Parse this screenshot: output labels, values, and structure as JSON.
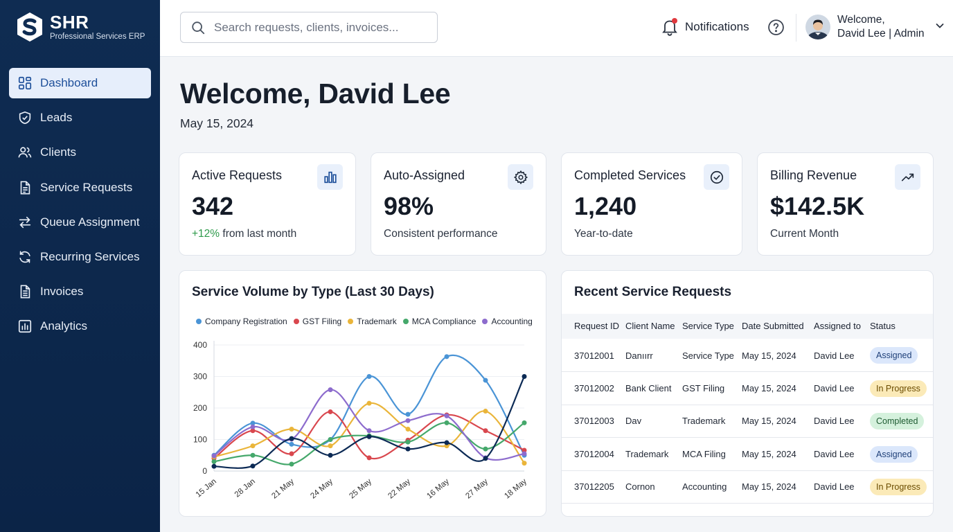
{
  "brand": {
    "name": "SHR",
    "subtitle": "Professional Services ERP"
  },
  "sidebar": {
    "items": [
      {
        "label": "Dashboard",
        "icon": "dashboard-icon",
        "active": true
      },
      {
        "label": "Leads",
        "icon": "shield-icon"
      },
      {
        "label": "Clients",
        "icon": "users-icon"
      },
      {
        "label": "Service Requests",
        "icon": "document-icon"
      },
      {
        "label": "Queue Assignment",
        "icon": "swap-arrows-icon"
      },
      {
        "label": "Recurring Services",
        "icon": "refresh-icon"
      },
      {
        "label": "Invoices",
        "icon": "invoice-icon"
      },
      {
        "label": "Analytics",
        "icon": "analytics-icon"
      }
    ]
  },
  "topbar": {
    "search_placeholder": "Search requests, clients, invoices...",
    "notifications_label": "Notifications",
    "user_greeting": "Welcome,",
    "user_line": "David Lee | Admin"
  },
  "main": {
    "welcome": "Welcome, David Lee",
    "date": "May 15, 2024"
  },
  "stats": [
    {
      "title": "Active Requests",
      "value": "342",
      "delta": "+12%",
      "sub": " from last month",
      "icon": "bar-chart-icon"
    },
    {
      "title": "Auto-Assigned",
      "value": "98%",
      "sub": "Consistent performance",
      "icon": "gear-icon"
    },
    {
      "title": "Completed Services",
      "value": "1,240",
      "sub": "Year-to-date",
      "icon": "check-circle-icon"
    },
    {
      "title": "Billing Revenue",
      "value": "$142.5K",
      "sub": "Current Month",
      "icon": "trending-up-icon"
    }
  ],
  "chart_data": {
    "type": "line",
    "title": "Service Volume by Type (Last 30 Days)",
    "categories": [
      "15 Jan",
      "28 Jan",
      "21 May",
      "24 May",
      "25 May",
      "22 May",
      "16 May",
      "27 May",
      "18 May"
    ],
    "ylim": [
      0,
      400
    ],
    "yticks": [
      0,
      100,
      200,
      300,
      400
    ],
    "grid": true,
    "legend_position": "top",
    "series": [
      {
        "name": "Company Registration",
        "color": "#4a94d6",
        "values": [
          50,
          152,
          85,
          100,
          300,
          180,
          363,
          288,
          50
        ]
      },
      {
        "name": "GST Filing",
        "color": "#d9474e",
        "values": [
          40,
          128,
          55,
          188,
          42,
          98,
          178,
          128,
          66
        ]
      },
      {
        "name": "Trademark",
        "color": "#eab53a",
        "values": [
          45,
          80,
          133,
          80,
          215,
          133,
          80,
          190,
          25
        ]
      },
      {
        "name": "MCA Compliance",
        "color": "#45a86b",
        "values": [
          30,
          50,
          22,
          100,
          112,
          92,
          153,
          70,
          153
        ]
      },
      {
        "name": "Accounting",
        "color": "#8d6ccd",
        "values": [
          48,
          140,
          101,
          258,
          128,
          160,
          175,
          42,
          55
        ]
      },
      {
        "color": "#0c2a55",
        "values": [
          15,
          16,
          103,
          50,
          109,
          70,
          90,
          40,
          300
        ]
      }
    ]
  },
  "requests": {
    "title": "Recent Service Requests",
    "columns": [
      "Request ID",
      "Client Name",
      "Service Type",
      "Date Submitted",
      "Assigned to",
      "Status"
    ],
    "rows": [
      {
        "id": "37012001",
        "client": "Danıırr",
        "service": "Service Type",
        "date": "May 15, 2024",
        "assigned": "David Lee",
        "status": "Assigned",
        "status_kind": "assigned"
      },
      {
        "id": "37012002",
        "client": "Bank Client",
        "service": "GST Filing",
        "date": "May 15, 2024",
        "assigned": "David Lee",
        "status": "In Progress",
        "status_kind": "progress"
      },
      {
        "id": "37012003",
        "client": "Dav",
        "service": "Trademark",
        "date": "May 15, 2024",
        "assigned": "David Lee",
        "status": "Completed",
        "status_kind": "completed"
      },
      {
        "id": "37012004",
        "client": "Trademark",
        "service": "MCA Filing",
        "date": "May 15, 2024",
        "assigned": "David Lee",
        "status": "Assigned",
        "status_kind": "assigned"
      },
      {
        "id": "37012205",
        "client": "Cornon",
        "service": "Accounting",
        "date": "May 15, 2024",
        "assigned": "David Lee",
        "status": "In Progress",
        "status_kind": "progress"
      }
    ]
  }
}
